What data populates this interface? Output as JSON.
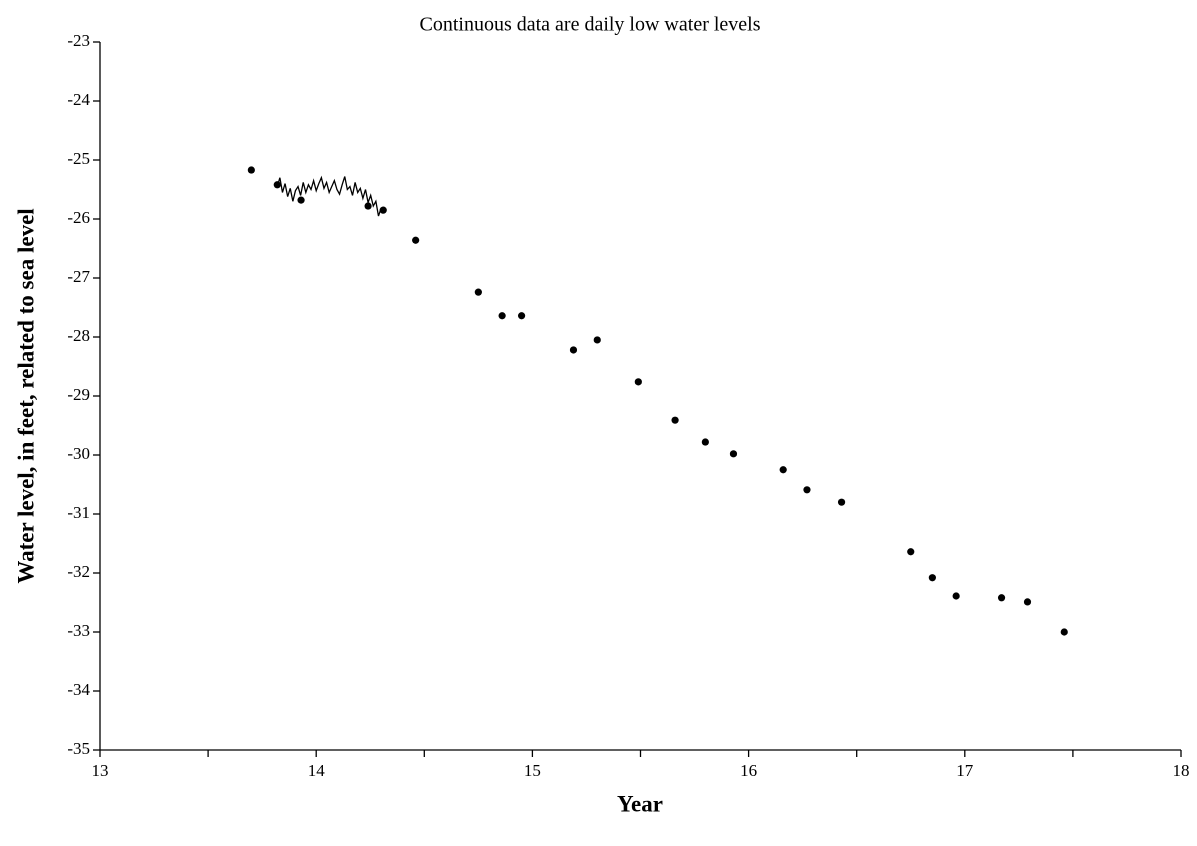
{
  "chart_data": {
    "type": "scatter",
    "title": "Continuous data are daily low water levels",
    "x_label": "Year",
    "y_label": "Water level, in feet, related to sea level",
    "xlim": [
      13,
      18
    ],
    "xticks": [
      13,
      14,
      15,
      16,
      17,
      18
    ],
    "xminor": [
      13.5,
      14.5,
      15.5,
      16.5,
      17.5
    ],
    "ylim": [
      -35,
      -23
    ],
    "yticks": [
      -35,
      -34,
      -33,
      -32,
      -31,
      -30,
      -29,
      -28,
      -27,
      -26,
      -25,
      -24,
      -23
    ],
    "grid": false,
    "series": [
      {
        "type": "line",
        "color": "#000000",
        "x": [
          13.82,
          13.832,
          13.844,
          13.856,
          13.868,
          13.88,
          13.892,
          13.904,
          13.916,
          13.928,
          13.94,
          13.952,
          13.964,
          13.976,
          13.988,
          14.0,
          14.012,
          14.024,
          14.036,
          14.048,
          14.06,
          14.072,
          14.084,
          14.096,
          14.108,
          14.12,
          14.132,
          14.144,
          14.156,
          14.168,
          14.18,
          14.192,
          14.204,
          14.216,
          14.228,
          14.24,
          14.252,
          14.264,
          14.276,
          14.288,
          14.3
        ],
        "values": [
          -25.45,
          -25.3,
          -25.55,
          -25.4,
          -25.62,
          -25.48,
          -25.7,
          -25.52,
          -25.45,
          -25.6,
          -25.38,
          -25.55,
          -25.42,
          -25.5,
          -25.35,
          -25.52,
          -25.4,
          -25.3,
          -25.48,
          -25.38,
          -25.55,
          -25.45,
          -25.35,
          -25.5,
          -25.58,
          -25.42,
          -25.28,
          -25.5,
          -25.45,
          -25.6,
          -25.38,
          -25.55,
          -25.48,
          -25.65,
          -25.5,
          -25.72,
          -25.6,
          -25.78,
          -25.7,
          -25.95,
          -25.82
        ]
      },
      {
        "type": "scatter",
        "color": "#000000",
        "x": [
          13.7,
          13.82,
          13.93,
          14.24,
          14.31,
          14.46,
          14.75,
          14.86,
          14.95,
          15.19,
          15.3,
          15.49,
          15.66,
          15.8,
          15.93,
          16.16,
          16.27,
          16.43,
          16.75,
          16.85,
          16.96,
          17.17,
          17.29,
          17.46
        ],
        "values": [
          -25.17,
          -25.42,
          -25.68,
          -25.78,
          -25.85,
          -26.36,
          -27.24,
          -27.64,
          -27.64,
          -28.22,
          -28.05,
          -28.76,
          -29.41,
          -29.78,
          -29.98,
          -30.25,
          -30.59,
          -30.8,
          -31.64,
          -32.08,
          -32.39,
          -32.42,
          -32.49,
          -33.0
        ]
      }
    ]
  }
}
